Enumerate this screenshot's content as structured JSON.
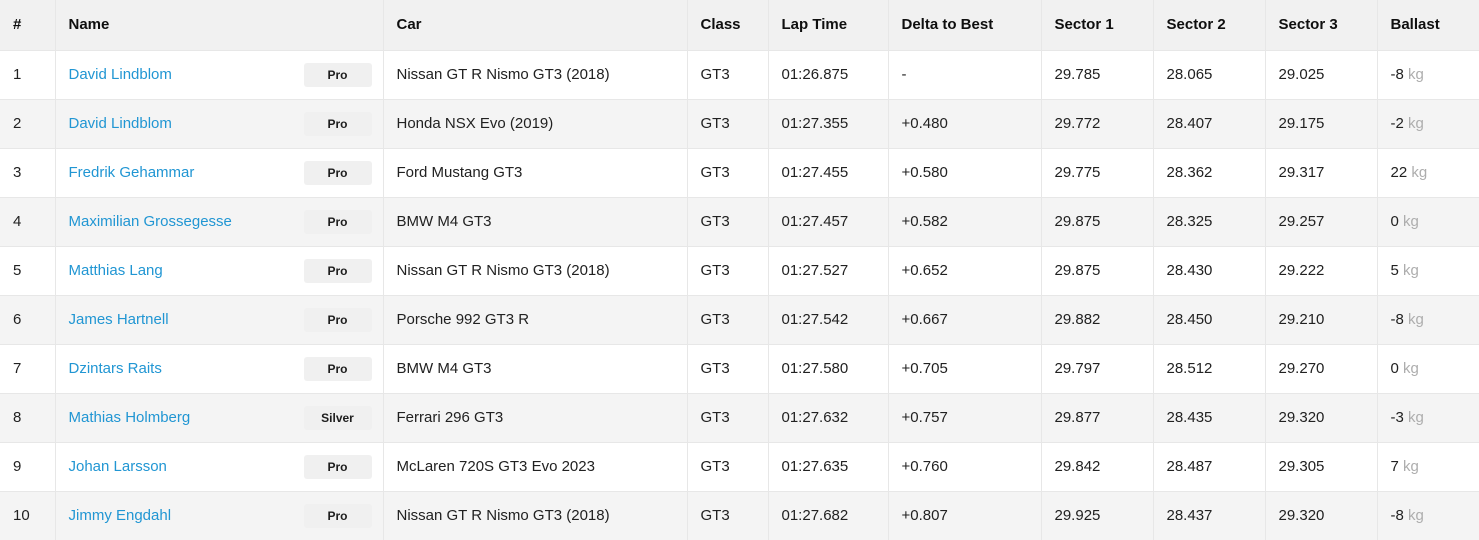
{
  "colors": {
    "link": "#2196d3",
    "header_bg": "#f1f1f1",
    "stripe_bg": "#f4f4f4",
    "badge_bg": "#f0f0f0",
    "badge_text": "#1d1d1d",
    "cell_text": "#212121",
    "unit_text": "#adadad",
    "border": "#e7e7e7"
  },
  "table": {
    "columns": [
      {
        "key": "pos",
        "label": "#"
      },
      {
        "key": "name",
        "label": "Name"
      },
      {
        "key": "car",
        "label": "Car"
      },
      {
        "key": "class",
        "label": "Class"
      },
      {
        "key": "lap_time",
        "label": "Lap Time"
      },
      {
        "key": "delta",
        "label": "Delta to Best"
      },
      {
        "key": "sector1",
        "label": "Sector 1"
      },
      {
        "key": "sector2",
        "label": "Sector 2"
      },
      {
        "key": "sector3",
        "label": "Sector 3"
      },
      {
        "key": "ballast",
        "label": "Ballast"
      }
    ],
    "rows": [
      {
        "pos": "1",
        "name": "David Lindblom",
        "badge": "Pro",
        "car": "Nissan GT R Nismo GT3 (2018)",
        "class": "GT3",
        "lap_time": "01:26.875",
        "delta": "-",
        "sector1": "29.785",
        "sector2": "28.065",
        "sector3": "29.025",
        "ballast": "-8",
        "ballast_unit": "kg"
      },
      {
        "pos": "2",
        "name": "David Lindblom",
        "badge": "Pro",
        "car": "Honda NSX Evo (2019)",
        "class": "GT3",
        "lap_time": "01:27.355",
        "delta": "+0.480",
        "sector1": "29.772",
        "sector2": "28.407",
        "sector3": "29.175",
        "ballast": "-2",
        "ballast_unit": "kg"
      },
      {
        "pos": "3",
        "name": "Fredrik Gehammar",
        "badge": "Pro",
        "car": "Ford Mustang GT3",
        "class": "GT3",
        "lap_time": "01:27.455",
        "delta": "+0.580",
        "sector1": "29.775",
        "sector2": "28.362",
        "sector3": "29.317",
        "ballast": "22",
        "ballast_unit": "kg"
      },
      {
        "pos": "4",
        "name": "Maximilian Grossegesse",
        "badge": "Pro",
        "car": "BMW M4 GT3",
        "class": "GT3",
        "lap_time": "01:27.457",
        "delta": "+0.582",
        "sector1": "29.875",
        "sector2": "28.325",
        "sector3": "29.257",
        "ballast": "0",
        "ballast_unit": "kg"
      },
      {
        "pos": "5",
        "name": "Matthias Lang",
        "badge": "Pro",
        "car": "Nissan GT R Nismo GT3 (2018)",
        "class": "GT3",
        "lap_time": "01:27.527",
        "delta": "+0.652",
        "sector1": "29.875",
        "sector2": "28.430",
        "sector3": "29.222",
        "ballast": "5",
        "ballast_unit": "kg"
      },
      {
        "pos": "6",
        "name": "James Hartnell",
        "badge": "Pro",
        "car": "Porsche 992 GT3 R",
        "class": "GT3",
        "lap_time": "01:27.542",
        "delta": "+0.667",
        "sector1": "29.882",
        "sector2": "28.450",
        "sector3": "29.210",
        "ballast": "-8",
        "ballast_unit": "kg"
      },
      {
        "pos": "7",
        "name": "Dzintars Raits",
        "badge": "Pro",
        "car": "BMW M4 GT3",
        "class": "GT3",
        "lap_time": "01:27.580",
        "delta": "+0.705",
        "sector1": "29.797",
        "sector2": "28.512",
        "sector3": "29.270",
        "ballast": "0",
        "ballast_unit": "kg"
      },
      {
        "pos": "8",
        "name": "Mathias Holmberg",
        "badge": "Silver",
        "car": "Ferrari 296 GT3",
        "class": "GT3",
        "lap_time": "01:27.632",
        "delta": "+0.757",
        "sector1": "29.877",
        "sector2": "28.435",
        "sector3": "29.320",
        "ballast": "-3",
        "ballast_unit": "kg"
      },
      {
        "pos": "9",
        "name": "Johan Larsson",
        "badge": "Pro",
        "car": "McLaren 720S GT3 Evo 2023",
        "class": "GT3",
        "lap_time": "01:27.635",
        "delta": "+0.760",
        "sector1": "29.842",
        "sector2": "28.487",
        "sector3": "29.305",
        "ballast": "7",
        "ballast_unit": "kg"
      },
      {
        "pos": "10",
        "name": "Jimmy Engdahl",
        "badge": "Pro",
        "car": "Nissan GT R Nismo GT3 (2018)",
        "class": "GT3",
        "lap_time": "01:27.682",
        "delta": "+0.807",
        "sector1": "29.925",
        "sector2": "28.437",
        "sector3": "29.320",
        "ballast": "-8",
        "ballast_unit": "kg"
      }
    ]
  }
}
